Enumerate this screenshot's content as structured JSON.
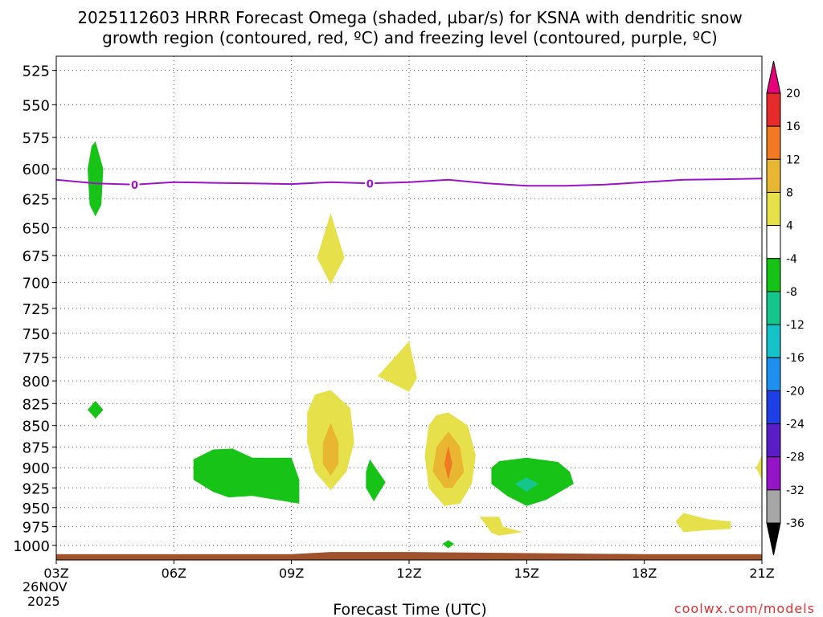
{
  "chart_data": {
    "type": "heatmap",
    "title_line1": "2025112603 HRRR Forecast Omega (shaded, µbar/s) for KSNA with dendritic snow",
    "title_line2": "growth region (contoured, red, ºC) and freezing level (contoured, purple, ºC)",
    "xlabel": "Forecast Time (UTC)",
    "ylabel": "",
    "credit": "coolwx.com/models",
    "x_hours": [
      3,
      6,
      9,
      12,
      15,
      18,
      21
    ],
    "x_tick_labels": [
      "03Z",
      "06Z",
      "09Z",
      "12Z",
      "15Z",
      "18Z",
      "21Z"
    ],
    "date_label_line1": "26NOV",
    "date_label_line2": "2025",
    "xlim": [
      3,
      21
    ],
    "y_levels": [
      525,
      550,
      575,
      600,
      625,
      650,
      675,
      700,
      725,
      750,
      775,
      800,
      825,
      850,
      875,
      900,
      925,
      950,
      975,
      1000
    ],
    "y_tick_labels": [
      "525",
      "550",
      "575",
      "600",
      "625",
      "650",
      "675",
      "700",
      "725",
      "750",
      "775",
      "800",
      "825",
      "850",
      "875",
      "900",
      "925",
      "950",
      "975",
      "1000"
    ],
    "ylim": [
      515,
      1020
    ],
    "yscale": "log-pressure",
    "grid": true,
    "colorbar": {
      "labels": [
        "20",
        "16",
        "12",
        "8",
        "4",
        "-4",
        "-8",
        "-12",
        "-16",
        "-20",
        "-24",
        "-28",
        "-32",
        "-36"
      ],
      "colors": [
        "#e6007a",
        "#e62b2b",
        "#f07a24",
        "#e8b630",
        "#e6e04a",
        "#ffffff",
        "#17c317",
        "#14c58c",
        "#14c2c8",
        "#1e90f0",
        "#1e3ee6",
        "#5a1ec8",
        "#9614c8",
        "#a6a6a6",
        "#000000"
      ]
    },
    "freezing_level": {
      "label": "0",
      "label_hours": [
        5,
        11
      ],
      "color": "#9b12c8",
      "hours": [
        3,
        4,
        5,
        6,
        7,
        8,
        9,
        10,
        11,
        12,
        13,
        14,
        15,
        16,
        17,
        18,
        19,
        20,
        21
      ],
      "pressure": [
        609,
        612,
        613,
        611,
        611.5,
        612,
        612.5,
        611,
        612,
        611,
        609,
        612,
        614,
        614,
        613,
        611,
        609,
        608.5,
        608
      ]
    },
    "omega_regions": [
      {
        "level": "-4 to -8",
        "color": "#17c317",
        "points": [
          [
            4.0,
            578
          ],
          [
            4.2,
            600
          ],
          [
            4.15,
            630
          ],
          [
            4.0,
            640
          ],
          [
            3.85,
            630
          ],
          [
            3.8,
            600
          ],
          [
            3.9,
            582
          ]
        ]
      },
      {
        "level": "4 to 8",
        "color": "#e6e04a",
        "points": [
          [
            10.0,
            637
          ],
          [
            10.35,
            677
          ],
          [
            10.0,
            702
          ],
          [
            9.65,
            677
          ]
        ]
      },
      {
        "level": "4 to 8",
        "color": "#e6e04a",
        "points": [
          [
            12.0,
            758
          ],
          [
            12.2,
            797
          ],
          [
            12.0,
            812
          ],
          [
            11.2,
            795
          ]
        ]
      },
      {
        "level": "-4 to -8",
        "color": "#17c317",
        "points": [
          [
            4.0,
            822
          ],
          [
            4.2,
            832
          ],
          [
            4.0,
            842
          ],
          [
            3.8,
            832
          ]
        ]
      },
      {
        "level": "-4 to -8",
        "color": "#17c317",
        "points": [
          [
            7.5,
            877
          ],
          [
            8.0,
            888
          ],
          [
            9.0,
            888
          ],
          [
            9.2,
            915
          ],
          [
            9.2,
            945
          ],
          [
            8.0,
            935
          ],
          [
            7.4,
            937
          ],
          [
            7.0,
            930
          ],
          [
            6.5,
            915
          ],
          [
            6.5,
            890
          ],
          [
            7.0,
            878
          ]
        ]
      },
      {
        "level": "4 to 8",
        "color": "#e6e04a",
        "points": [
          [
            10.0,
            810
          ],
          [
            10.5,
            830
          ],
          [
            10.6,
            870
          ],
          [
            10.4,
            905
          ],
          [
            10.0,
            928
          ],
          [
            9.6,
            905
          ],
          [
            9.4,
            870
          ],
          [
            9.4,
            835
          ],
          [
            9.6,
            815
          ]
        ]
      },
      {
        "level": "8 to 12",
        "color": "#e8b630",
        "points": [
          [
            10.0,
            847
          ],
          [
            10.2,
            870
          ],
          [
            10.2,
            895
          ],
          [
            10.0,
            910
          ],
          [
            9.8,
            895
          ],
          [
            9.8,
            870
          ]
        ]
      },
      {
        "level": "-4 to -8",
        "color": "#17c317",
        "points": [
          [
            11.0,
            890
          ],
          [
            11.4,
            918
          ],
          [
            11.1,
            942
          ],
          [
            10.9,
            925
          ],
          [
            10.9,
            905
          ]
        ]
      },
      {
        "level": "4 to 8",
        "color": "#e6e04a",
        "points": [
          [
            13.0,
            835
          ],
          [
            13.5,
            850
          ],
          [
            13.7,
            885
          ],
          [
            13.6,
            920
          ],
          [
            13.3,
            945
          ],
          [
            12.9,
            948
          ],
          [
            12.5,
            925
          ],
          [
            12.4,
            885
          ],
          [
            12.5,
            850
          ],
          [
            12.7,
            838
          ]
        ]
      },
      {
        "level": "8 to 12",
        "color": "#e8b630",
        "points": [
          [
            13.0,
            857
          ],
          [
            13.3,
            875
          ],
          [
            13.4,
            905
          ],
          [
            13.1,
            925
          ],
          [
            12.9,
            925
          ],
          [
            12.6,
            905
          ],
          [
            12.7,
            875
          ]
        ]
      },
      {
        "level": "12 to 16",
        "color": "#f07a24",
        "points": [
          [
            13.0,
            873
          ],
          [
            13.1,
            895
          ],
          [
            13.0,
            915
          ],
          [
            12.9,
            895
          ]
        ]
      },
      {
        "level": "-4 to -8",
        "color": "#17c317",
        "points": [
          [
            14.3,
            892
          ],
          [
            15.0,
            888
          ],
          [
            15.8,
            893
          ],
          [
            16.1,
            905
          ],
          [
            16.2,
            920
          ],
          [
            15.5,
            940
          ],
          [
            15.0,
            948
          ],
          [
            14.5,
            935
          ],
          [
            14.1,
            920
          ],
          [
            14.1,
            900
          ]
        ]
      },
      {
        "level": "-8 to -12",
        "color": "#14c58c",
        "points": [
          [
            15.0,
            912
          ],
          [
            15.3,
            920
          ],
          [
            15.0,
            930
          ],
          [
            14.7,
            920
          ]
        ]
      },
      {
        "level": "4 to 8",
        "color": "#e6e04a",
        "points": [
          [
            13.8,
            962
          ],
          [
            14.3,
            962
          ],
          [
            14.4,
            975
          ],
          [
            14.9,
            982
          ],
          [
            14.3,
            987
          ],
          [
            14.1,
            983
          ]
        ]
      },
      {
        "level": "-4 to -8",
        "color": "#17c317",
        "points": [
          [
            13.0,
            993
          ],
          [
            13.15,
            998
          ],
          [
            13.0,
            1004
          ],
          [
            12.85,
            998
          ]
        ]
      },
      {
        "level": "4 to 8",
        "color": "#e6e04a",
        "points": [
          [
            19.0,
            957
          ],
          [
            19.6,
            965
          ],
          [
            20.2,
            968
          ],
          [
            20.2,
            978
          ],
          [
            19.5,
            980
          ],
          [
            19.0,
            982
          ],
          [
            18.8,
            968
          ]
        ]
      },
      {
        "level": "4 to 8",
        "color": "#e6e04a",
        "points": [
          [
            21.0,
            885
          ],
          [
            21.0,
            915
          ],
          [
            20.85,
            900
          ]
        ]
      }
    ],
    "terrain": {
      "color": "#a0522d",
      "points": [
        [
          3.0,
          1012
        ],
        [
          9.0,
          1012
        ],
        [
          10.0,
          1009
        ],
        [
          12.0,
          1009
        ],
        [
          14.0,
          1010
        ],
        [
          18.0,
          1012
        ],
        [
          21.0,
          1012
        ],
        [
          21.0,
          1020
        ],
        [
          3.0,
          1020
        ]
      ]
    }
  }
}
